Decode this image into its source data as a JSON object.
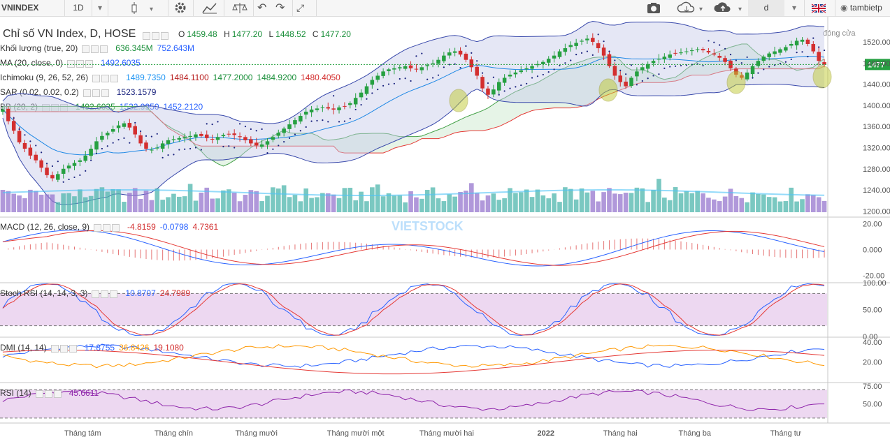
{
  "toolbar": {
    "symbol": "VNINDEX",
    "interval": "1D",
    "interval_chevron": "chevron-down-icon",
    "chart_type_icon": "candlestick-icon",
    "settings_icon": "gear-icon",
    "indicators_icon": "indicators-icon",
    "compare_icon": "scales-icon",
    "undo_icon": "undo-icon",
    "redo_icon": "redo-icon",
    "fullscreen_icon": "fullscreen-icon",
    "camera_icon": "camera-icon",
    "download_icon": "cloud-download-icon",
    "upload_icon": "cloud-upload-icon",
    "layout_value": "d",
    "language_icon": "uk-flag-icon",
    "user": "tambietp"
  },
  "main_legend": {
    "title": "Chỉ số VN Index, D, HOSE",
    "ohlc": {
      "o_label": "O",
      "o": "1459.48",
      "h_label": "H",
      "h": "1477.20",
      "l_label": "L",
      "l": "1448.52",
      "c_label": "C",
      "c": "1477.20"
    },
    "rows": [
      {
        "name": "Khối lượng (true, 20)",
        "values": [
          "636.345M",
          "752.643M"
        ],
        "colors": [
          "#1a8f3a",
          "#2962ff"
        ]
      },
      {
        "name": "MA (20, close, 0)",
        "values": [
          "1492.6035"
        ],
        "colors": [
          "#2962ff"
        ]
      },
      {
        "name": "Ichimoku (9, 26, 52, 26)",
        "values": [
          "1489.7350",
          "1484.1100",
          "1477.2000",
          "1484.9200",
          "1480.4050"
        ],
        "colors": [
          "#2196f3",
          "#b71c1c",
          "#1a8f3a",
          "#1a8f3a",
          "#d32f2f"
        ]
      },
      {
        "name": "SAR (0.02, 0.02, 0.2)",
        "values": [
          "1523.1579"
        ],
        "colors": [
          "#1a237e"
        ]
      },
      {
        "name": "BB (20, 2)",
        "values": [
          "1492.6035",
          "1532.9950",
          "1452.2120"
        ],
        "colors": [
          "#1a8f3a",
          "#2962ff",
          "#2962ff"
        ]
      }
    ],
    "close_label": "đóng cửa",
    "last_price": "1477",
    "watermark": "VIETSTOCK"
  },
  "panes": {
    "macd": {
      "name": "MACD (12, 26, close, 9)",
      "values": [
        "-4.8159",
        "-0.0798",
        "4.7361"
      ],
      "colors": [
        "#d32f2f",
        "#2962ff",
        "#d32f2f"
      ]
    },
    "stoch": {
      "name": "Stoch RSI (14, 14, 3, 3)",
      "values": [
        "10.8707",
        "24.7989"
      ],
      "colors": [
        "#2962ff",
        "#d32f2f"
      ]
    },
    "dmi": {
      "name": "DMI (14, 14)",
      "values": [
        "17.8755",
        "36.8426",
        "19.1080"
      ],
      "colors": [
        "#2962ff",
        "#ff9800",
        "#d32f2f"
      ]
    },
    "rsi": {
      "name": "RSI (14)",
      "values": [
        "45.6611"
      ],
      "colors": [
        "#8e24aa"
      ]
    }
  },
  "chart_data": {
    "type": "candlestick",
    "price_axis": {
      "ticks": [
        "1520.00",
        "1480.00",
        "1440.00",
        "1400.00",
        "1360.00",
        "1320.00",
        "1280.00",
        "1240.00",
        "1200.00"
      ],
      "range": [
        1190,
        1545
      ]
    },
    "macd_axis": {
      "ticks": [
        "20.00",
        "0.000",
        "-20.00"
      ],
      "range": [
        -25,
        25
      ]
    },
    "stoch_axis": {
      "ticks": [
        "100.00",
        "50.00",
        "0.00"
      ],
      "range": [
        0,
        100
      ]
    },
    "dmi_axis": {
      "ticks": [
        "40.00",
        "20.00"
      ],
      "range": [
        0,
        45
      ]
    },
    "rsi_axis": {
      "ticks": [
        "75.00",
        "50.00"
      ],
      "range": [
        25,
        80
      ]
    },
    "time_labels": [
      "Tháng tám",
      "Tháng chín",
      "Tháng mười",
      "Tháng mười một",
      "Tháng mười hai",
      "2022",
      "Tháng hai",
      "Tháng ba",
      "Tháng tư"
    ],
    "closes": [
      1392,
      1370,
      1352,
      1330,
      1318,
      1305,
      1296,
      1282,
      1268,
      1262,
      1270,
      1280,
      1286,
      1291,
      1296,
      1305,
      1318,
      1332,
      1342,
      1348,
      1355,
      1362,
      1366,
      1358,
      1345,
      1328,
      1318,
      1316,
      1320,
      1328,
      1334,
      1336,
      1338,
      1340,
      1342,
      1345,
      1342,
      1338,
      1336,
      1340,
      1344,
      1346,
      1344,
      1340,
      1334,
      1328,
      1324,
      1326,
      1332,
      1340,
      1348,
      1356,
      1364,
      1372,
      1380,
      1388,
      1392,
      1394,
      1396,
      1394,
      1392,
      1396,
      1398,
      1404,
      1414,
      1424,
      1436,
      1448,
      1456,
      1464,
      1468,
      1470,
      1472,
      1474,
      1470,
      1468,
      1472,
      1476,
      1480,
      1486,
      1494,
      1500,
      1502,
      1496,
      1486,
      1472,
      1456,
      1432,
      1420,
      1430,
      1444,
      1452,
      1458,
      1462,
      1466,
      1470,
      1474,
      1478,
      1482,
      1488,
      1494,
      1502,
      1508,
      1514,
      1518,
      1522,
      1526,
      1520,
      1508,
      1494,
      1474,
      1456,
      1444,
      1436,
      1452,
      1464,
      1472,
      1478,
      1484,
      1488,
      1492,
      1496,
      1498,
      1500,
      1502,
      1504,
      1506,
      1504,
      1500,
      1496,
      1490,
      1482,
      1470,
      1458,
      1452,
      1462,
      1474,
      1484,
      1492,
      1498,
      1502,
      1506,
      1510,
      1516,
      1522,
      1524,
      1516,
      1502,
      1484,
      1477
    ]
  }
}
